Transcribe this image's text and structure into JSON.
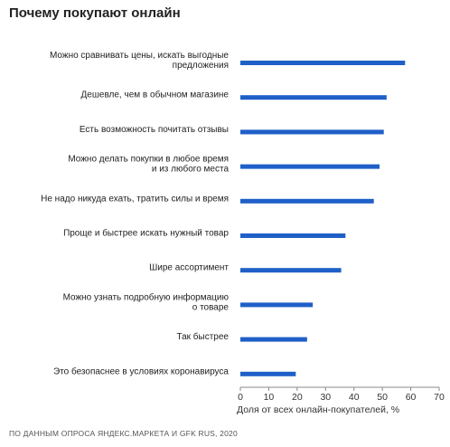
{
  "title": "Почему покупают онлайн",
  "source": "ПО ДАННЫМ ОПРОСА ЯНДЕКС.МАРКЕТА И GFK RUS, 2020",
  "chart_data": {
    "type": "bar",
    "orientation": "horizontal",
    "title": "Почему покупают онлайн",
    "xlabel": "Доля от всех онлайн-покупателей, %",
    "xlim": [
      0,
      70
    ],
    "xticks": [
      0,
      10,
      20,
      30,
      40,
      50,
      60,
      70
    ],
    "grid": false,
    "categories": [
      [
        "Можно сравнивать цены, искать выгодные",
        "предложения"
      ],
      [
        "Дешевле, чем в обычном магазине"
      ],
      [
        "Есть возможность почитать отзывы"
      ],
      [
        "Можно делать покупки в любое время",
        "и из любого места"
      ],
      [
        "Не надо никуда ехать, тратить силы и время"
      ],
      [
        "Проще и быстрее искать нужный товар"
      ],
      [
        "Шире ассортимент"
      ],
      [
        "Можно узнать подробную информацию",
        "о товаре"
      ],
      [
        "Так быстрее"
      ],
      [
        "Это безопаснее в условиях коронавируса"
      ]
    ],
    "values": [
      58,
      51.5,
      50.5,
      49,
      47,
      37,
      35.5,
      25.5,
      23.5,
      19.5
    ],
    "bar_color": "#1f5fc8"
  }
}
